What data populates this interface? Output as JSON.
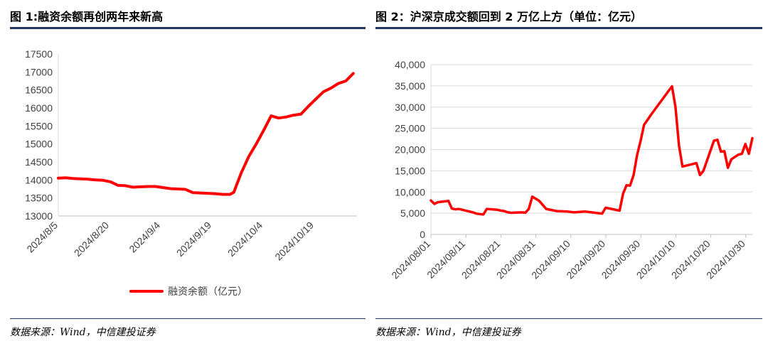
{
  "left": {
    "title": "图 1:融资余额再创两年来新高",
    "source": "数据来源：Wind，中信建投证券",
    "chart_data": {
      "type": "line",
      "yticks": [
        13000,
        13500,
        14000,
        14500,
        15000,
        15500,
        16000,
        16500,
        17000,
        17500
      ],
      "ylim": [
        13000,
        17500
      ],
      "xticks": [
        "2024/8/5",
        "2024/8/20",
        "2024/9/4",
        "2024/9/19",
        "2024/10/4",
        "2024/10/19"
      ],
      "xlim": [
        0,
        80
      ],
      "legend_position": "bottom",
      "series": [
        {
          "name": "融资余额（亿元）",
          "color": "#ff0000",
          "x": [
            0,
            2,
            4,
            6,
            8,
            10,
            12,
            14,
            16,
            18,
            20,
            22,
            24,
            26,
            28,
            30,
            32,
            34,
            36,
            38,
            40,
            42,
            44,
            46,
            47,
            49,
            51,
            53,
            55,
            57,
            59,
            61,
            63,
            65,
            67,
            68,
            69,
            71,
            73,
            75,
            77,
            79
          ],
          "values": [
            14050,
            14060,
            14040,
            14030,
            14020,
            14000,
            13990,
            13950,
            13850,
            13840,
            13800,
            13810,
            13820,
            13820,
            13790,
            13760,
            13750,
            13740,
            13650,
            13640,
            13630,
            13620,
            13600,
            13600,
            13660,
            14200,
            14650,
            15000,
            15380,
            15780,
            15720,
            15750,
            15800,
            15830,
            16050,
            16150,
            16250,
            16450,
            16550,
            16680,
            16750,
            16960
          ]
        }
      ]
    }
  },
  "right": {
    "title": "图 2：沪深京成交额回到 2 万亿上方（单位：亿元）",
    "source": "数据来源：Wind，中信建投证券",
    "chart_data": {
      "type": "line",
      "yticks": [
        "0",
        "5,000",
        "10,000",
        "15,000",
        "20,000",
        "25,000",
        "30,000",
        "35,000",
        "40,000"
      ],
      "ylim": [
        0,
        40000
      ],
      "xticks": [
        "2024/08/01",
        "2024/08/11",
        "2024/08/21",
        "2024/08/31",
        "2024/09/10",
        "2024/09/20",
        "2024/09/30",
        "2024/10/10",
        "2024/10/20",
        "2024/10/30"
      ],
      "xlim": [
        0,
        92
      ],
      "legend_position": "none",
      "series": [
        {
          "name": "",
          "color": "#ff0000",
          "x": [
            0,
            1,
            2,
            5,
            6,
            7,
            8,
            9,
            12,
            13,
            14,
            15,
            16,
            19,
            20,
            21,
            22,
            23,
            26,
            27,
            28,
            29,
            30,
            31,
            33,
            36,
            39,
            40,
            41,
            44,
            47,
            48,
            49,
            50,
            54,
            55,
            56,
            57,
            58,
            59,
            60,
            61,
            62,
            63,
            69,
            70,
            71,
            72,
            75,
            76,
            77,
            78,
            81,
            82,
            83,
            84,
            85,
            86,
            88,
            89,
            90,
            91,
            92
          ],
          "values": [
            8000,
            7200,
            7600,
            7900,
            6100,
            5900,
            6000,
            5800,
            5200,
            4900,
            4800,
            4700,
            6000,
            5800,
            5600,
            5500,
            5200,
            5100,
            5200,
            5100,
            6000,
            8900,
            8400,
            7900,
            6000,
            5500,
            5400,
            5300,
            5200,
            5400,
            5100,
            5000,
            4900,
            6300,
            5600,
            9600,
            11600,
            11500,
            14000,
            18700,
            22000,
            25800,
            27000,
            28200,
            34900,
            30000,
            21000,
            16000,
            16600,
            16800,
            14000,
            15000,
            22100,
            22300,
            19500,
            19600,
            15700,
            17700,
            18800,
            19000,
            21300,
            19000,
            22700
          ]
        }
      ]
    }
  }
}
